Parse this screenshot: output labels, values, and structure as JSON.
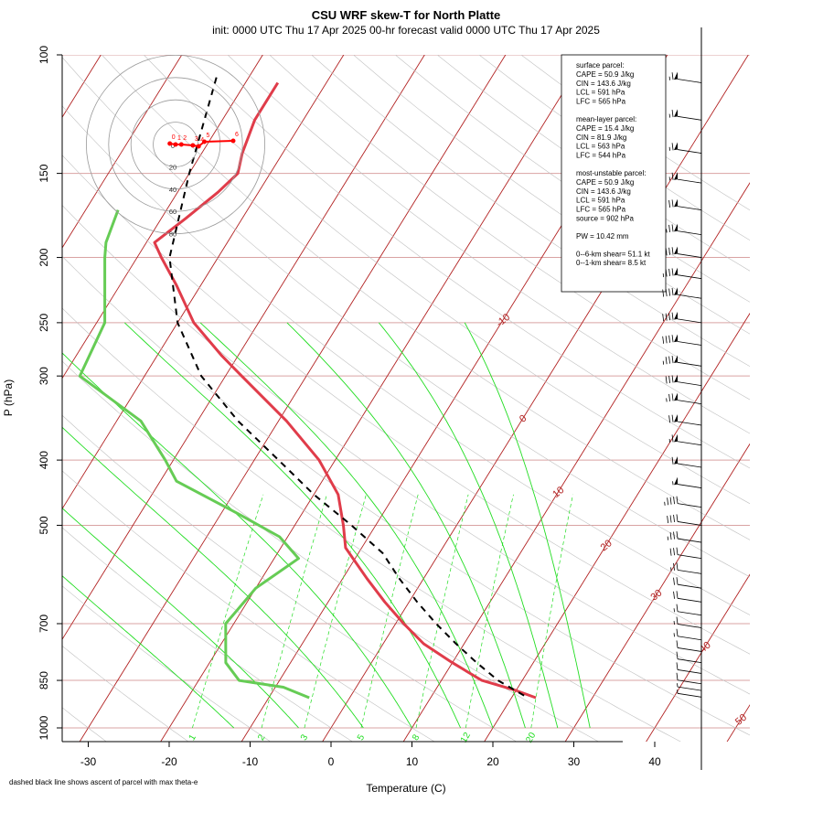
{
  "chart_data": {
    "type": "skew-t",
    "title": "CSU WRF skew-T for North Platte",
    "subtitle": "init: 0000 UTC Thu 17 Apr 2025     00-hr forecast valid 0000 UTC Thu 17 Apr 2025",
    "xlabel": "Temperature (C)",
    "ylabel": "P (hPa)",
    "footnote": "dashed black line shows ascent of parcel with max theta-e",
    "pressure_ticks": [
      "100",
      "150",
      "200",
      "250",
      "300",
      "400",
      "500",
      "700",
      "850",
      "1000"
    ],
    "temperature_ticks": [
      "-30",
      "-20",
      "-10",
      "0",
      "10",
      "20",
      "30",
      "40"
    ],
    "isotherm_labels": [
      "-10",
      "0",
      "10",
      "20",
      "30",
      "40",
      "50"
    ],
    "mixing_ratio_labels": [
      "1",
      "2",
      "3",
      "5",
      "8",
      "12",
      "20"
    ],
    "series": [
      {
        "name": "temperature",
        "color": "#e03c4a",
        "points": [
          [
            110,
            -56
          ],
          [
            125,
            -56
          ],
          [
            140,
            -55
          ],
          [
            150,
            -54
          ],
          [
            160,
            -55
          ],
          [
            175,
            -57
          ],
          [
            190,
            -59
          ],
          [
            200,
            -57
          ],
          [
            220,
            -53
          ],
          [
            250,
            -48
          ],
          [
            280,
            -42
          ],
          [
            300,
            -38
          ],
          [
            350,
            -29
          ],
          [
            400,
            -22
          ],
          [
            450,
            -17
          ],
          [
            500,
            -14
          ],
          [
            540,
            -12
          ],
          [
            600,
            -7
          ],
          [
            650,
            -3
          ],
          [
            700,
            1
          ],
          [
            750,
            5
          ],
          [
            800,
            10
          ],
          [
            850,
            15
          ],
          [
            880,
            20
          ],
          [
            902,
            23
          ]
        ]
      },
      {
        "name": "dewpoint",
        "color": "#66cc55",
        "points": [
          [
            170,
            -66
          ],
          [
            190,
            -65
          ],
          [
            200,
            -64
          ],
          [
            250,
            -59
          ],
          [
            300,
            -58
          ],
          [
            350,
            -47
          ],
          [
            400,
            -41
          ],
          [
            430,
            -38
          ],
          [
            480,
            -28
          ],
          [
            520,
            -21
          ],
          [
            560,
            -17
          ],
          [
            620,
            -20
          ],
          [
            700,
            -21
          ],
          [
            800,
            -18
          ],
          [
            850,
            -15
          ],
          [
            870,
            -9
          ],
          [
            902,
            -5
          ]
        ]
      },
      {
        "name": "parcel",
        "color": "#000000",
        "style": "dashed",
        "points": [
          [
            108,
            -64
          ],
          [
            150,
            -60
          ],
          [
            200,
            -56
          ],
          [
            250,
            -50
          ],
          [
            300,
            -43
          ],
          [
            350,
            -35
          ],
          [
            400,
            -27
          ],
          [
            450,
            -20
          ],
          [
            500,
            -13
          ],
          [
            550,
            -7
          ],
          [
            600,
            -3
          ],
          [
            650,
            1
          ],
          [
            700,
            5
          ],
          [
            750,
            9
          ],
          [
            800,
            13
          ],
          [
            850,
            17
          ],
          [
            902,
            22
          ]
        ]
      }
    ],
    "wind_barbs": {
      "levels_hPa": [
        110,
        125,
        140,
        155,
        170,
        185,
        200,
        215,
        230,
        250,
        270,
        290,
        310,
        330,
        355,
        380,
        410,
        440,
        470,
        500,
        530,
        560,
        590,
        620,
        650,
        680,
        710,
        740,
        770,
        800,
        830,
        860,
        880,
        900
      ],
      "speeds_kt": [
        65,
        65,
        65,
        65,
        70,
        75,
        80,
        85,
        90,
        90,
        90,
        85,
        80,
        75,
        70,
        65,
        60,
        55,
        45,
        40,
        35,
        30,
        25,
        20,
        20,
        15,
        15,
        15,
        10,
        10,
        10,
        10,
        5,
        5
      ]
    },
    "hodograph": {
      "ring_labels": [
        "20",
        "40",
        "60",
        "80"
      ],
      "origin_label": "0",
      "points": [
        [
          -1,
          -1
        ],
        [
          0,
          0
        ],
        [
          1,
          0
        ],
        [
          3,
          1
        ],
        [
          4,
          2
        ],
        [
          5,
          -3
        ],
        [
          10,
          -4
        ]
      ],
      "km_labels": [
        "0",
        "1",
        "2",
        "3",
        "4",
        "5",
        "6"
      ]
    },
    "info_box": {
      "surface": [
        "surface parcel:",
        "CAPE = 50.9 J/kg",
        "CIN = 143.6 J/kg",
        "LCL = 591 hPa",
        "LFC = 565 hPa"
      ],
      "mean_layer": [
        "mean-layer parcel:",
        "CAPE = 15.4 J/kg",
        "CIN = 81.9 J/kg",
        "LCL = 563 hPa",
        "LFC = 544 hPa"
      ],
      "most_unstable": [
        "most-unstable parcel:",
        "CAPE = 50.9 J/kg",
        "CIN = 143.6 J/kg",
        "LCL = 591 hPa",
        "LFC = 565 hPa",
        "source = 902 hPa"
      ],
      "pw": "PW =  10.42 mm",
      "shear": [
        "0--6-km shear= 51.1 kt",
        "0--1-km shear= 8.5 kt"
      ]
    },
    "colors": {
      "isotherm": "#b22222",
      "isobar": "#d9a3a3",
      "dry_adiabat": "#c0c0c0",
      "moist_adiabat": "#22dd22",
      "mixing_ratio": "#22dd22"
    },
    "grid": true
  }
}
